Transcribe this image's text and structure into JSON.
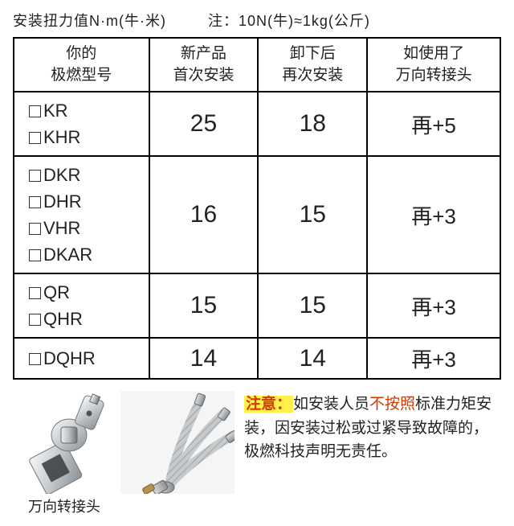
{
  "header": {
    "title": "安装扭力值N·m(牛·米)",
    "note": "注：10N(牛)≈1kg(公斤)"
  },
  "table": {
    "headers": {
      "col1": "你的\n极燃型号",
      "col2": "新产品\n首次安装",
      "col3": "卸下后\n再次安装",
      "col4": "如使用了\n万向转接头"
    },
    "rows": [
      {
        "models": [
          "KR",
          "KHR"
        ],
        "first": "25",
        "again": "18",
        "adapter": "再+5"
      },
      {
        "models": [
          "DKR",
          "DHR",
          "VHR",
          "DKAR"
        ],
        "first": "16",
        "again": "15",
        "adapter": "再+3"
      },
      {
        "models": [
          "QR",
          "QHR"
        ],
        "first": "15",
        "again": "15",
        "adapter": "再+3"
      },
      {
        "models": [
          "DQHR"
        ],
        "first": "14",
        "again": "14",
        "adapter": "再+3"
      }
    ]
  },
  "product_caption": "万向转接头",
  "notice": {
    "label": "注意：",
    "part1": "如安装人员",
    "highlight": "不按照",
    "part2": "标准力矩安装，因安装过松或过紧导致故障的，极燃科技声明无责任。"
  },
  "style": {
    "metal_light": "#e6e8ea",
    "metal_mid": "#b7bcc0",
    "metal_dark": "#7d8489",
    "highlight_bg": "#fff04a",
    "red": "#d23a00",
    "border": "#000000"
  }
}
